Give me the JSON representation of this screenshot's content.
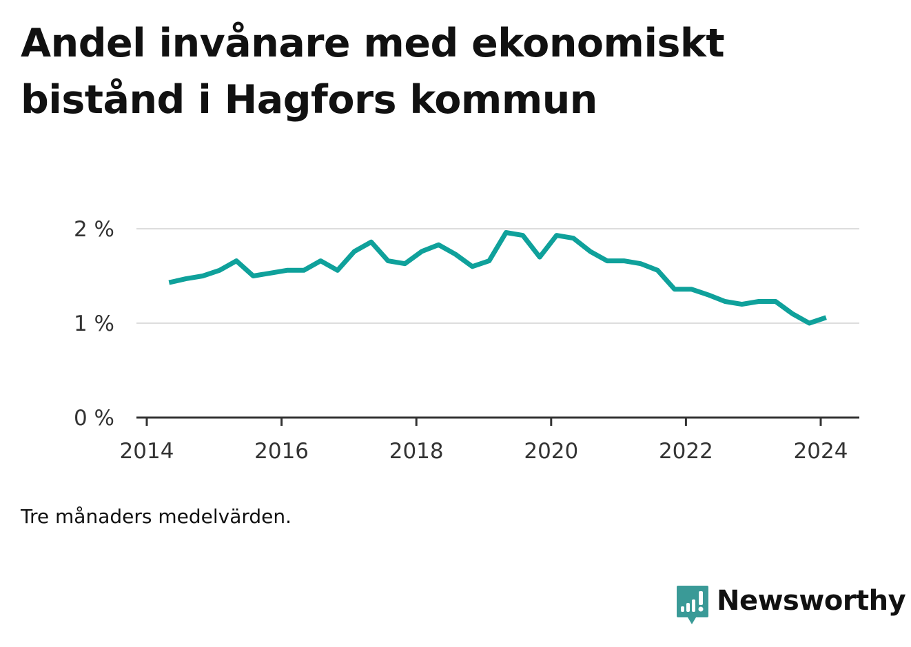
{
  "title": "Andel invånare med ekonomiskt bistånd i Hagfors kommun",
  "note": "Tre månaders medelvärden.",
  "brand": {
    "name": "Newsworthy",
    "icon": "newsworthy-logo-icon",
    "color": "#3a9a97"
  },
  "colors": {
    "line": "#0fa19b",
    "grid": "#dddddd",
    "axis": "#333333",
    "text": "#111111"
  },
  "chart_data": {
    "type": "line",
    "title": "Andel invånare med ekonomiskt bistånd i Hagfors kommun",
    "xlabel": "",
    "ylabel": "",
    "x_ticks": [
      "2014",
      "2016",
      "2018",
      "2020",
      "2022",
      "2024"
    ],
    "y_ticks": [
      "0 %",
      "1 %",
      "2 %"
    ],
    "ylim": [
      0,
      2
    ],
    "xlim": [
      2014.0,
      2024.5
    ],
    "grid": true,
    "series": [
      {
        "x": [
          2014.33,
          2014.58,
          2014.83,
          2015.08,
          2015.33,
          2015.58,
          2015.83,
          2016.08,
          2016.33,
          2016.58,
          2016.83,
          2017.08,
          2017.33,
          2017.58,
          2017.83,
          2018.08,
          2018.33,
          2018.58,
          2018.83,
          2019.08,
          2019.33,
          2019.58,
          2019.83,
          2020.08,
          2020.33,
          2020.58,
          2020.83,
          2021.08,
          2021.33,
          2021.58,
          2021.83,
          2022.08,
          2022.33,
          2022.58,
          2022.83,
          2023.08,
          2023.33,
          2023.58,
          2023.83,
          2024.08
        ],
        "y": [
          1.43,
          1.47,
          1.5,
          1.56,
          1.66,
          1.5,
          1.53,
          1.56,
          1.56,
          1.66,
          1.56,
          1.76,
          1.86,
          1.66,
          1.63,
          1.76,
          1.83,
          1.73,
          1.6,
          1.66,
          1.96,
          1.93,
          1.7,
          1.93,
          1.9,
          1.76,
          1.66,
          1.66,
          1.63,
          1.56,
          1.36,
          1.36,
          1.3,
          1.23,
          1.2,
          1.23,
          1.23,
          1.1,
          1.0,
          1.06
        ]
      }
    ]
  }
}
